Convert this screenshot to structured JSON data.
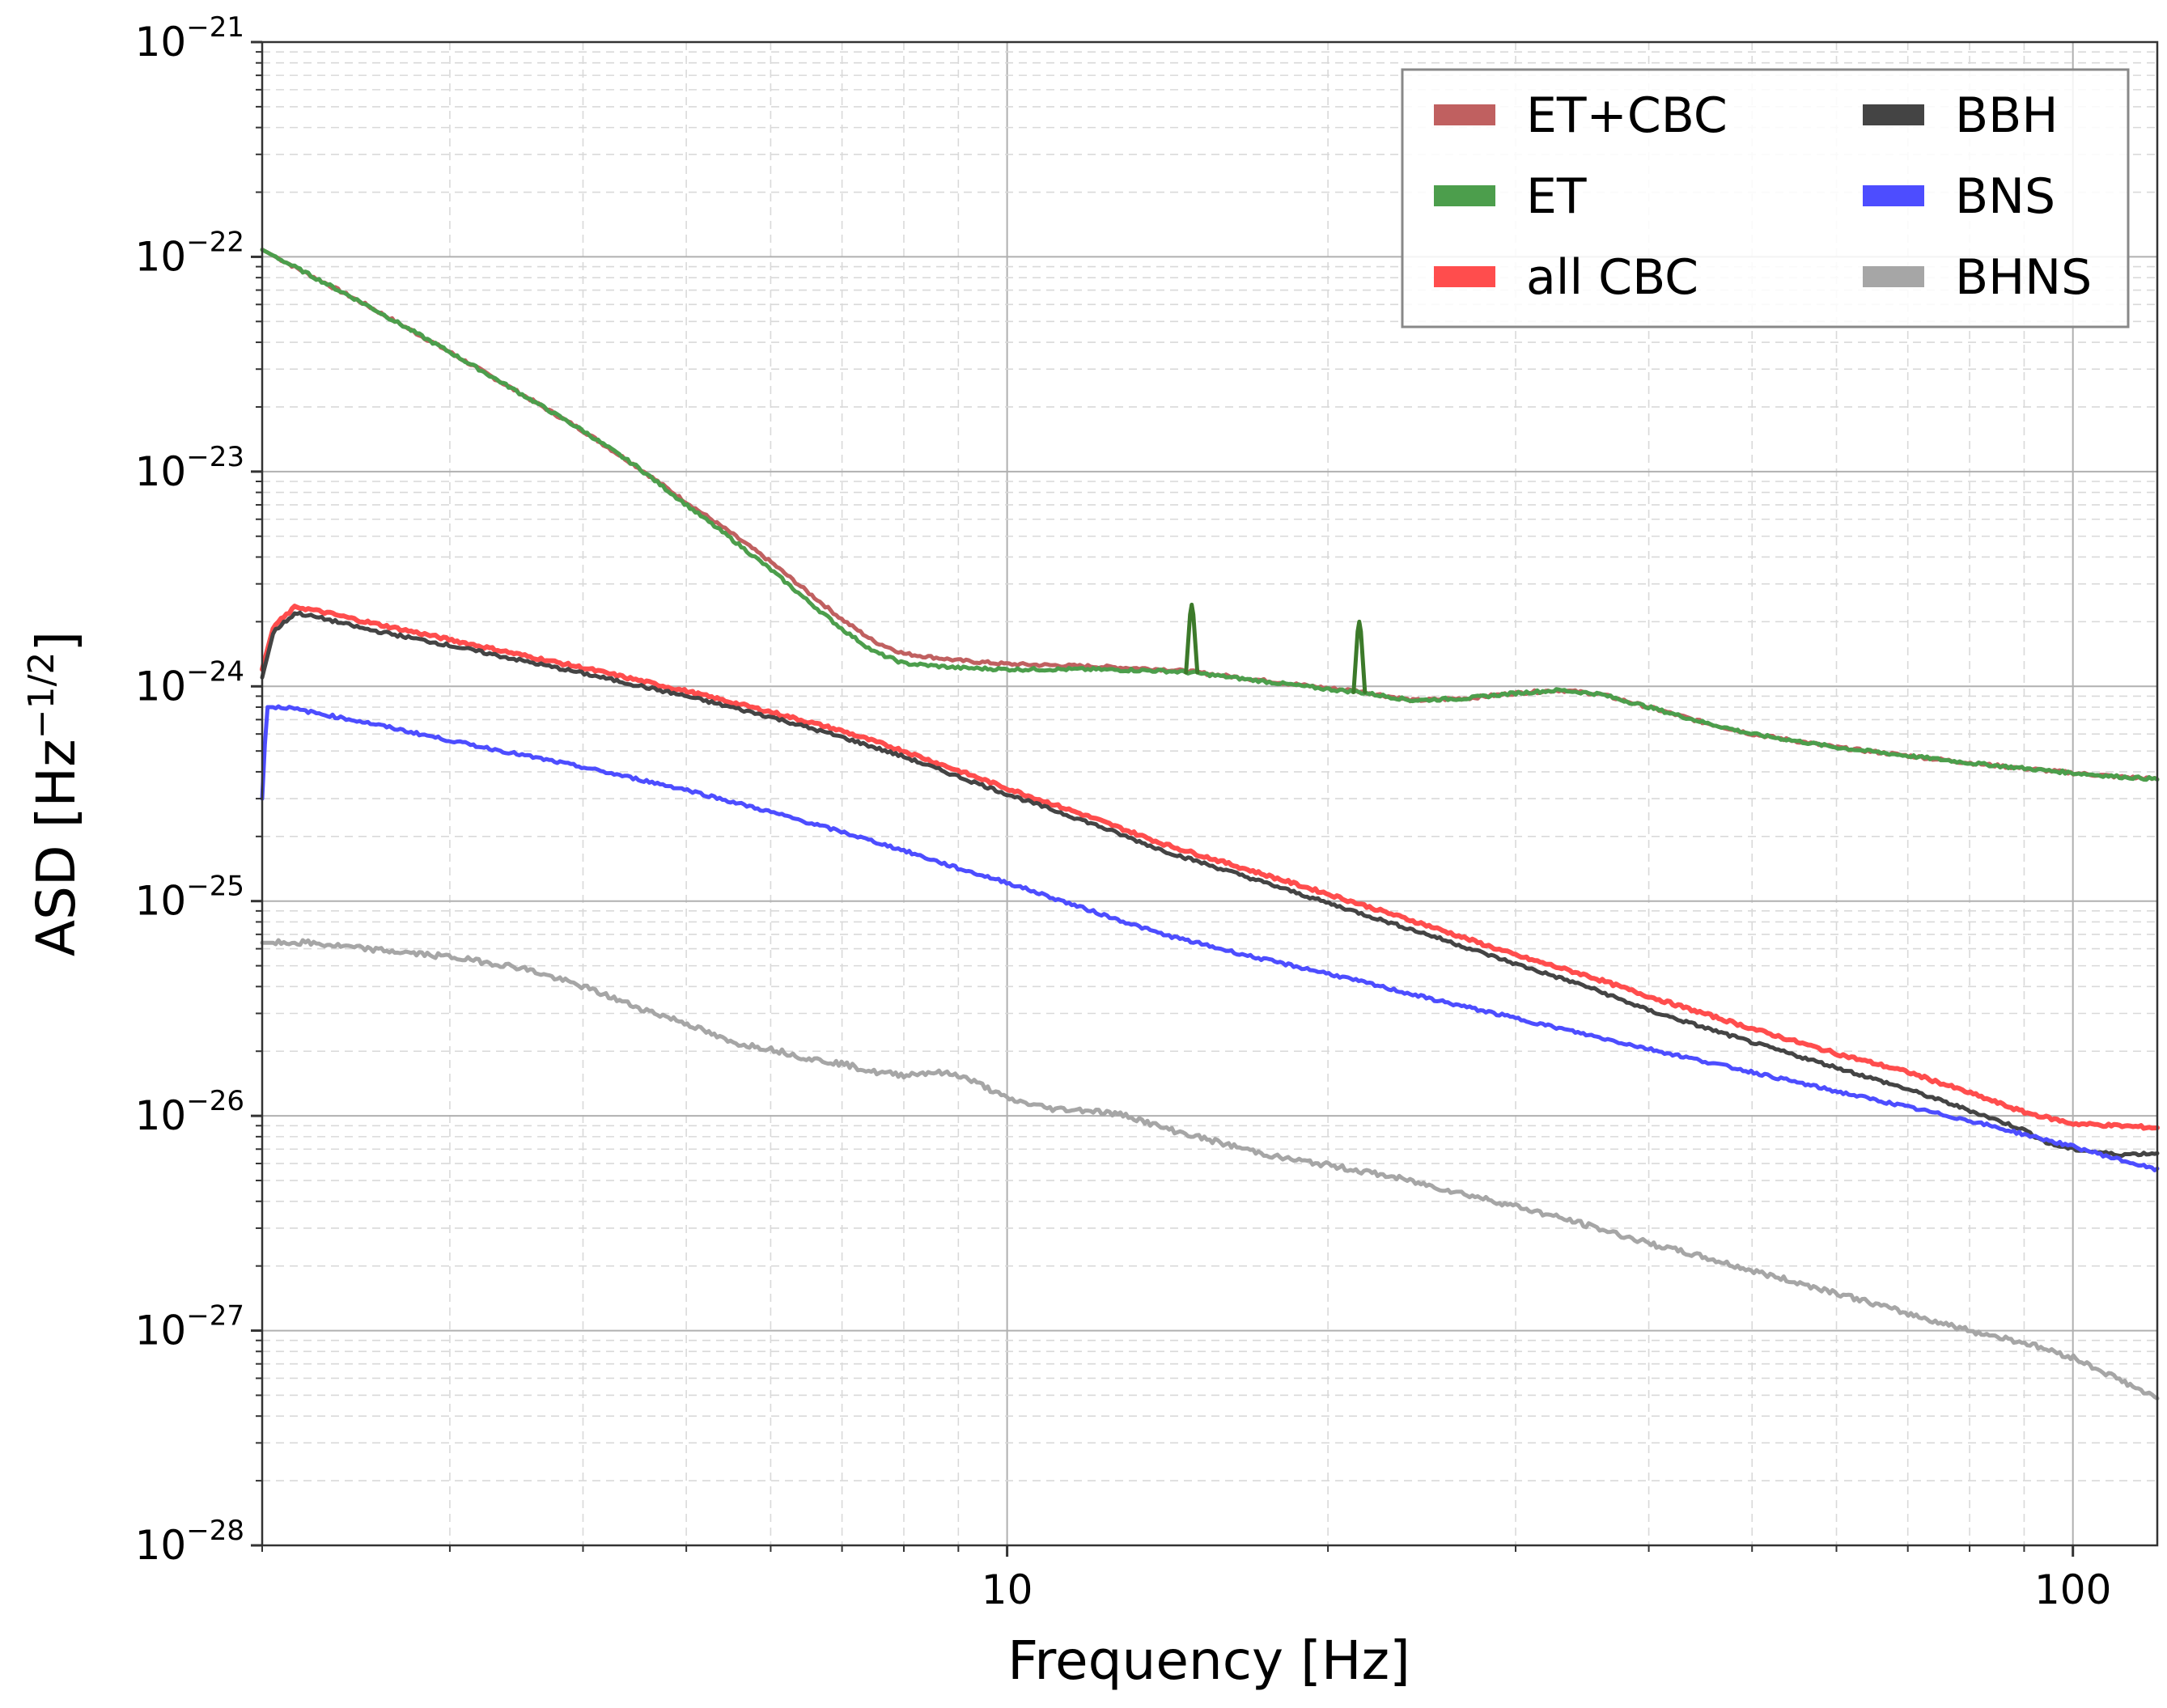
{
  "chart_data": {
    "type": "line",
    "xlabel": "Frequency [Hz]",
    "ylabel_text": "ASD [Hz",
    "ylabel_sup": "−1/2",
    "ylabel_close": "]",
    "x_scale": "log",
    "y_scale": "log",
    "xlim": [
      2,
      120
    ],
    "ylim": [
      1e-28,
      1e-21
    ],
    "x_ticks": [
      {
        "value": 10,
        "label": "10"
      },
      {
        "value": 100,
        "label": "100"
      }
    ],
    "y_ticks": [
      {
        "value": 1e-21,
        "base": "10",
        "exp": "−21"
      },
      {
        "value": 1e-22,
        "base": "10",
        "exp": "−22"
      },
      {
        "value": 1e-23,
        "base": "10",
        "exp": "−23"
      },
      {
        "value": 1e-24,
        "base": "10",
        "exp": "−24"
      },
      {
        "value": 1e-25,
        "base": "10",
        "exp": "−25"
      },
      {
        "value": 1e-26,
        "base": "10",
        "exp": "−26"
      },
      {
        "value": 1e-27,
        "base": "10",
        "exp": "−27"
      },
      {
        "value": 1e-28,
        "base": "10",
        "exp": "−28"
      }
    ],
    "grid": true,
    "legend_position": "top-right",
    "series": [
      {
        "name": "ET+CBC",
        "color": "#c06060",
        "width": 5,
        "points": [
          [
            2.0,
            1.08e-22
          ],
          [
            2.5,
            6e-23
          ],
          [
            3,
            3.6e-23
          ],
          [
            3.5,
            2.3e-23
          ],
          [
            4,
            1.55e-23
          ],
          [
            4.5,
            1.05e-23
          ],
          [
            5,
            7.2e-24
          ],
          [
            5.5,
            5.2e-24
          ],
          [
            6,
            3.8e-24
          ],
          [
            6.5,
            2.75e-24
          ],
          [
            7,
            2.05e-24
          ],
          [
            7.5,
            1.62e-24
          ],
          [
            8,
            1.42e-24
          ],
          [
            9,
            1.32e-24
          ],
          [
            10,
            1.27e-24
          ],
          [
            12,
            1.24e-24
          ],
          [
            14,
            1.2e-24
          ],
          [
            14.9,
            1.17e-24
          ],
          [
            17,
            1.08e-24
          ],
          [
            20,
            9.8e-25
          ],
          [
            21.4,
            9.5e-25
          ],
          [
            24,
            8.6e-25
          ],
          [
            27,
            8.8e-25
          ],
          [
            30,
            9.3e-25
          ],
          [
            33,
            9.6e-25
          ],
          [
            36,
            9.2e-25
          ],
          [
            40,
            8e-25
          ],
          [
            45,
            6.8e-25
          ],
          [
            50,
            6e-25
          ],
          [
            60,
            5.2e-25
          ],
          [
            70,
            4.75e-25
          ],
          [
            80,
            4.4e-25
          ],
          [
            90,
            4.15e-25
          ],
          [
            100,
            3.95e-25
          ],
          [
            110,
            3.8e-25
          ],
          [
            120,
            3.7e-25
          ]
        ]
      },
      {
        "name": "ET",
        "color": "#4c9e4c",
        "width": 5,
        "points": [
          [
            2.0,
            1.08e-22
          ],
          [
            2.5,
            6e-23
          ],
          [
            3,
            3.6e-23
          ],
          [
            3.5,
            2.3e-23
          ],
          [
            4,
            1.55e-23
          ],
          [
            4.5,
            1.05e-23
          ],
          [
            5,
            7e-24
          ],
          [
            5.5,
            4.9e-24
          ],
          [
            6,
            3.5e-24
          ],
          [
            6.5,
            2.5e-24
          ],
          [
            7,
            1.85e-24
          ],
          [
            7.5,
            1.45e-24
          ],
          [
            8,
            1.28e-24
          ],
          [
            9,
            1.22e-24
          ],
          [
            10,
            1.2e-24
          ],
          [
            12,
            1.2e-24
          ],
          [
            14,
            1.18e-24
          ],
          [
            14.9,
            1.16e-24
          ],
          [
            17,
            1.07e-24
          ],
          [
            20,
            9.7e-25
          ],
          [
            21.4,
            9.4e-25
          ],
          [
            24,
            8.6e-25
          ],
          [
            27,
            8.8e-25
          ],
          [
            30,
            9.3e-25
          ],
          [
            33,
            9.6e-25
          ],
          [
            36,
            9.2e-25
          ],
          [
            40,
            8e-25
          ],
          [
            45,
            6.8e-25
          ],
          [
            50,
            6e-25
          ],
          [
            60,
            5.2e-25
          ],
          [
            70,
            4.75e-25
          ],
          [
            80,
            4.4e-25
          ],
          [
            90,
            4.15e-25
          ],
          [
            100,
            3.95e-25
          ],
          [
            110,
            3.8e-25
          ],
          [
            120,
            3.7e-25
          ]
        ]
      },
      {
        "name": "all CBC",
        "color": "#ff4d4d",
        "width": 6,
        "points": [
          [
            2.0,
            1.2e-24
          ],
          [
            2.05,
            1.9e-24
          ],
          [
            2.15,
            2.35e-24
          ],
          [
            2.3,
            2.2e-24
          ],
          [
            2.5,
            2e-24
          ],
          [
            3,
            1.65e-24
          ],
          [
            3.5,
            1.4e-24
          ],
          [
            4,
            1.22e-24
          ],
          [
            5,
            9.5e-25
          ],
          [
            6,
            7.6e-25
          ],
          [
            7,
            6.2e-25
          ],
          [
            8,
            5e-25
          ],
          [
            9,
            4.05e-25
          ],
          [
            10,
            3.35e-25
          ],
          [
            12,
            2.45e-25
          ],
          [
            14,
            1.85e-25
          ],
          [
            17,
            1.38e-25
          ],
          [
            20,
            1.08e-25
          ],
          [
            25,
            7.6e-26
          ],
          [
            30,
            5.6e-26
          ],
          [
            35,
            4.5e-26
          ],
          [
            40,
            3.6e-26
          ],
          [
            50,
            2.55e-26
          ],
          [
            60,
            1.95e-26
          ],
          [
            70,
            1.6e-26
          ],
          [
            80,
            1.28e-26
          ],
          [
            90,
            1.04e-26
          ],
          [
            100,
            9.2e-27
          ],
          [
            110,
            9e-27
          ],
          [
            120,
            8.8e-27
          ]
        ]
      },
      {
        "name": "BBH",
        "color": "#444444",
        "width": 5,
        "points": [
          [
            2.0,
            1.1e-24
          ],
          [
            2.05,
            1.8e-24
          ],
          [
            2.15,
            2.2e-24
          ],
          [
            2.3,
            2.05e-24
          ],
          [
            2.5,
            1.85e-24
          ],
          [
            3,
            1.55e-24
          ],
          [
            3.5,
            1.32e-24
          ],
          [
            4,
            1.15e-24
          ],
          [
            5,
            9e-25
          ],
          [
            6,
            7.2e-25
          ],
          [
            7,
            5.8e-25
          ],
          [
            8,
            4.7e-25
          ],
          [
            9,
            3.8e-25
          ],
          [
            10,
            3.15e-25
          ],
          [
            12,
            2.3e-25
          ],
          [
            14,
            1.72e-25
          ],
          [
            17,
            1.27e-25
          ],
          [
            20,
            9.8e-26
          ],
          [
            25,
            6.9e-26
          ],
          [
            30,
            5.1e-26
          ],
          [
            35,
            4e-26
          ],
          [
            40,
            3.1e-26
          ],
          [
            50,
            2.2e-26
          ],
          [
            60,
            1.68e-26
          ],
          [
            70,
            1.33e-26
          ],
          [
            80,
            1.06e-26
          ],
          [
            90,
            8.6e-27
          ],
          [
            95,
            7.4e-27
          ],
          [
            100,
            7e-27
          ],
          [
            110,
            6.6e-27
          ],
          [
            120,
            6.7e-27
          ]
        ]
      },
      {
        "name": "BNS",
        "color": "#4d4dff",
        "width": 5,
        "points": [
          [
            2.0,
            3e-25
          ],
          [
            2.02,
            8e-25
          ],
          [
            2.1,
            8e-25
          ],
          [
            2.5,
            6.8e-25
          ],
          [
            3,
            5.6e-25
          ],
          [
            3.5,
            4.8e-25
          ],
          [
            4,
            4.2e-25
          ],
          [
            5,
            3.3e-25
          ],
          [
            6,
            2.6e-25
          ],
          [
            7,
            2.1e-25
          ],
          [
            8,
            1.72e-25
          ],
          [
            9,
            1.42e-25
          ],
          [
            10,
            1.22e-25
          ],
          [
            12,
            9e-26
          ],
          [
            14,
            7e-26
          ],
          [
            17,
            5.5e-26
          ],
          [
            20,
            4.6e-26
          ],
          [
            25,
            3.5e-26
          ],
          [
            30,
            2.85e-26
          ],
          [
            40,
            2.05e-26
          ],
          [
            50,
            1.6e-26
          ],
          [
            60,
            1.3e-26
          ],
          [
            70,
            1.1e-26
          ],
          [
            80,
            9.5e-27
          ],
          [
            90,
            8.2e-27
          ],
          [
            100,
            7.2e-27
          ],
          [
            110,
            6.3e-27
          ],
          [
            120,
            5.6e-27
          ]
        ]
      },
      {
        "name": "BHNS",
        "color": "#a6a6a6",
        "width": 5,
        "points": [
          [
            2.0,
            6.4e-26
          ],
          [
            2.2,
            6.4e-26
          ],
          [
            2.5,
            6e-26
          ],
          [
            3,
            5.5e-26
          ],
          [
            3.5,
            4.9e-26
          ],
          [
            4,
            4e-26
          ],
          [
            4.5,
            3.2e-26
          ],
          [
            5,
            2.7e-26
          ],
          [
            5.5,
            2.2e-26
          ],
          [
            6,
            2.05e-26
          ],
          [
            6.5,
            1.85e-26
          ],
          [
            7,
            1.75e-26
          ],
          [
            7.5,
            1.6e-26
          ],
          [
            8,
            1.55e-26
          ],
          [
            8.5,
            1.6e-26
          ],
          [
            9,
            1.55e-26
          ],
          [
            9.5,
            1.38e-26
          ],
          [
            10,
            1.2e-26
          ],
          [
            11,
            1.08e-26
          ],
          [
            12,
            1.06e-26
          ],
          [
            13,
            1e-26
          ],
          [
            14,
            8.8e-27
          ],
          [
            16,
            7.4e-27
          ],
          [
            18,
            6.4e-27
          ],
          [
            20,
            5.9e-27
          ],
          [
            23,
            5.2e-27
          ],
          [
            26,
            4.5e-27
          ],
          [
            30,
            3.8e-27
          ],
          [
            35,
            3.1e-27
          ],
          [
            40,
            2.55e-27
          ],
          [
            45,
            2.2e-27
          ],
          [
            50,
            1.9e-27
          ],
          [
            60,
            1.5e-27
          ],
          [
            70,
            1.2e-27
          ],
          [
            80,
            1e-27
          ],
          [
            90,
            8.8e-28
          ],
          [
            100,
            7.5e-28
          ],
          [
            110,
            6e-28
          ],
          [
            120,
            4.8e-28
          ]
        ]
      }
    ],
    "peaks": [
      {
        "series": "ET",
        "x": 14.9,
        "y": 2.4e-24
      },
      {
        "series": "ET",
        "x": 21.4,
        "y": 2e-24
      }
    ]
  }
}
